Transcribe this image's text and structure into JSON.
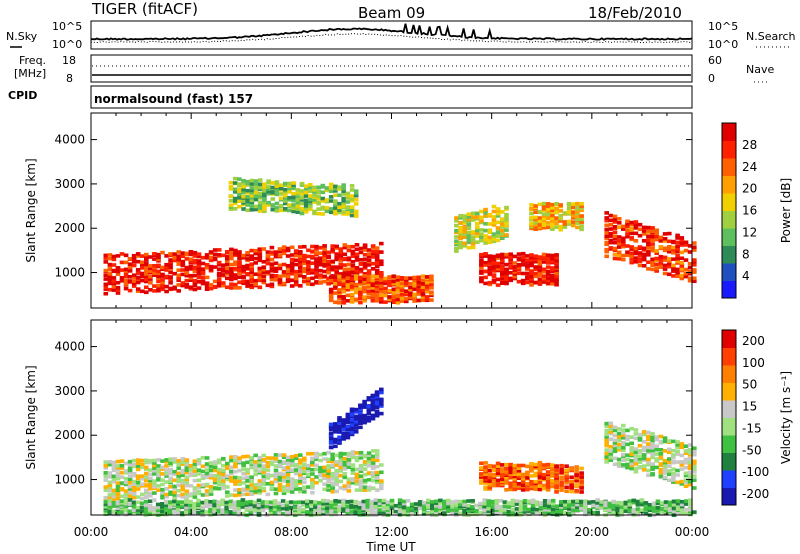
{
  "header": {
    "station": "TIGER (fitACF)",
    "beam": "Beam 09",
    "date": "18/Feb/2010"
  },
  "top_panel": {
    "left_label": "N.Sky",
    "left_tick_top": "10^5",
    "left_tick_bottom": "10^0",
    "right_tick_top": "10^5",
    "right_tick_bottom": "10^0",
    "right_label": "N.Search"
  },
  "freq_panel": {
    "left_label_line1": "Freq.",
    "left_label_line2": "[MHz]",
    "left_tick_top": "18",
    "left_tick_bottom": "8",
    "right_tick_top": "60",
    "right_tick_bottom": "0",
    "right_label": "Nave"
  },
  "cpid": {
    "label": "CPID",
    "value": "normalsound (fast) 157"
  },
  "chart_data": [
    {
      "type": "heatmap",
      "quantity": "power",
      "ylabel": "Slant Range [km]",
      "ylim": [
        200,
        4600
      ],
      "yticks": [
        "1000",
        "2000",
        "3000",
        "4000"
      ],
      "colorbar_label": "Power [dB]",
      "colorbar_ticks": [
        "4",
        "8",
        "12",
        "16",
        "20",
        "24",
        "28"
      ],
      "colorscale": [
        "#1a1aff",
        "#2050c0",
        "#2e8b57",
        "#5fbf5f",
        "#a0d040",
        "#f0d000",
        "#ffa000",
        "#ff6000",
        "#ff2000",
        "#e00000"
      ],
      "bands": [
        {
          "t": [
            0.5,
            11.5
          ],
          "range_start": [
            1200,
            800
          ],
          "range_end": [
            1200,
            1300
          ],
          "width": 450,
          "intensity": 0.9
        },
        {
          "t": [
            5.5,
            10.5
          ],
          "range_start": [
            2900,
            2700
          ],
          "range_end": [
            2700,
            2600
          ],
          "width": 350,
          "intensity": 0.4
        },
        {
          "t": [
            9.5,
            13.5
          ],
          "range_start": [
            700,
            600
          ],
          "range_end": [
            700,
            600
          ],
          "width": 300,
          "intensity": 0.8
        },
        {
          "t": [
            15.5,
            18.5
          ],
          "range_start": [
            1200,
            1000
          ],
          "range_end": [
            1200,
            1000
          ],
          "width": 350,
          "intensity": 0.95
        },
        {
          "t": [
            17.5,
            19.5
          ],
          "range_start": [
            1800,
            2800
          ],
          "range_end": [
            2800,
            1800
          ],
          "width": 300,
          "intensity": 0.6
        },
        {
          "t": [
            20.5,
            24.0
          ],
          "range_start": [
            2000,
            1800
          ],
          "range_end": [
            1400,
            1200
          ],
          "width": 500,
          "intensity": 0.85
        },
        {
          "t": [
            14.5,
            16.5
          ],
          "range_start": [
            2000,
            1800
          ],
          "range_end": [
            2300,
            2100
          ],
          "width": 400,
          "intensity": 0.5
        }
      ]
    },
    {
      "type": "heatmap",
      "quantity": "velocity",
      "ylabel": "Slant Range [km]",
      "ylim": [
        200,
        4600
      ],
      "yticks": [
        "1000",
        "2000",
        "3000",
        "4000"
      ],
      "colorbar_label": "Velocity [m s⁻¹]",
      "colorbar_ticks": [
        "200",
        "100",
        "50",
        "15",
        "-15",
        "-50",
        "-100",
        "-200"
      ],
      "colorscale": [
        "#1a1ab0",
        "#2040ff",
        "#208040",
        "#40c040",
        "#a0e080",
        "#c8c8c8",
        "#ffb000",
        "#ff8000",
        "#ff4000",
        "#e00000"
      ],
      "bands": [
        {
          "t": [
            0.5,
            11.5
          ],
          "range_start": [
            1200,
            800
          ],
          "range_end": [
            1200,
            1300
          ],
          "width": 450,
          "intensity": 0.5
        },
        {
          "t": [
            9.5,
            11.5
          ],
          "range_start": [
            2100,
            1900
          ],
          "range_end": [
            2900,
            2700
          ],
          "width": 300,
          "intensity": 0.02
        },
        {
          "t": [
            15.5,
            18.5
          ],
          "range_start": [
            1200,
            1000
          ],
          "range_end": [
            1200,
            1000
          ],
          "width": 300,
          "intensity": 0.8
        },
        {
          "t": [
            18.5,
            19.5
          ],
          "range_start": [
            1200,
            900
          ],
          "range_end": [
            1100,
            900
          ],
          "width": 300,
          "intensity": 0.85
        },
        {
          "t": [
            20.5,
            24.0
          ],
          "range_start": [
            2000,
            1800
          ],
          "range_end": [
            1400,
            1200
          ],
          "width": 500,
          "intensity": 0.5
        },
        {
          "t": [
            0.5,
            24.0
          ],
          "range_start": [
            400,
            200
          ],
          "range_end": [
            400,
            200
          ],
          "width": 250,
          "intensity": 0.4
        }
      ]
    }
  ],
  "xaxis": {
    "label": "Time UT",
    "ticks": [
      "00:00",
      "04:00",
      "08:00",
      "12:00",
      "16:00",
      "20:00",
      "00:00"
    ]
  }
}
